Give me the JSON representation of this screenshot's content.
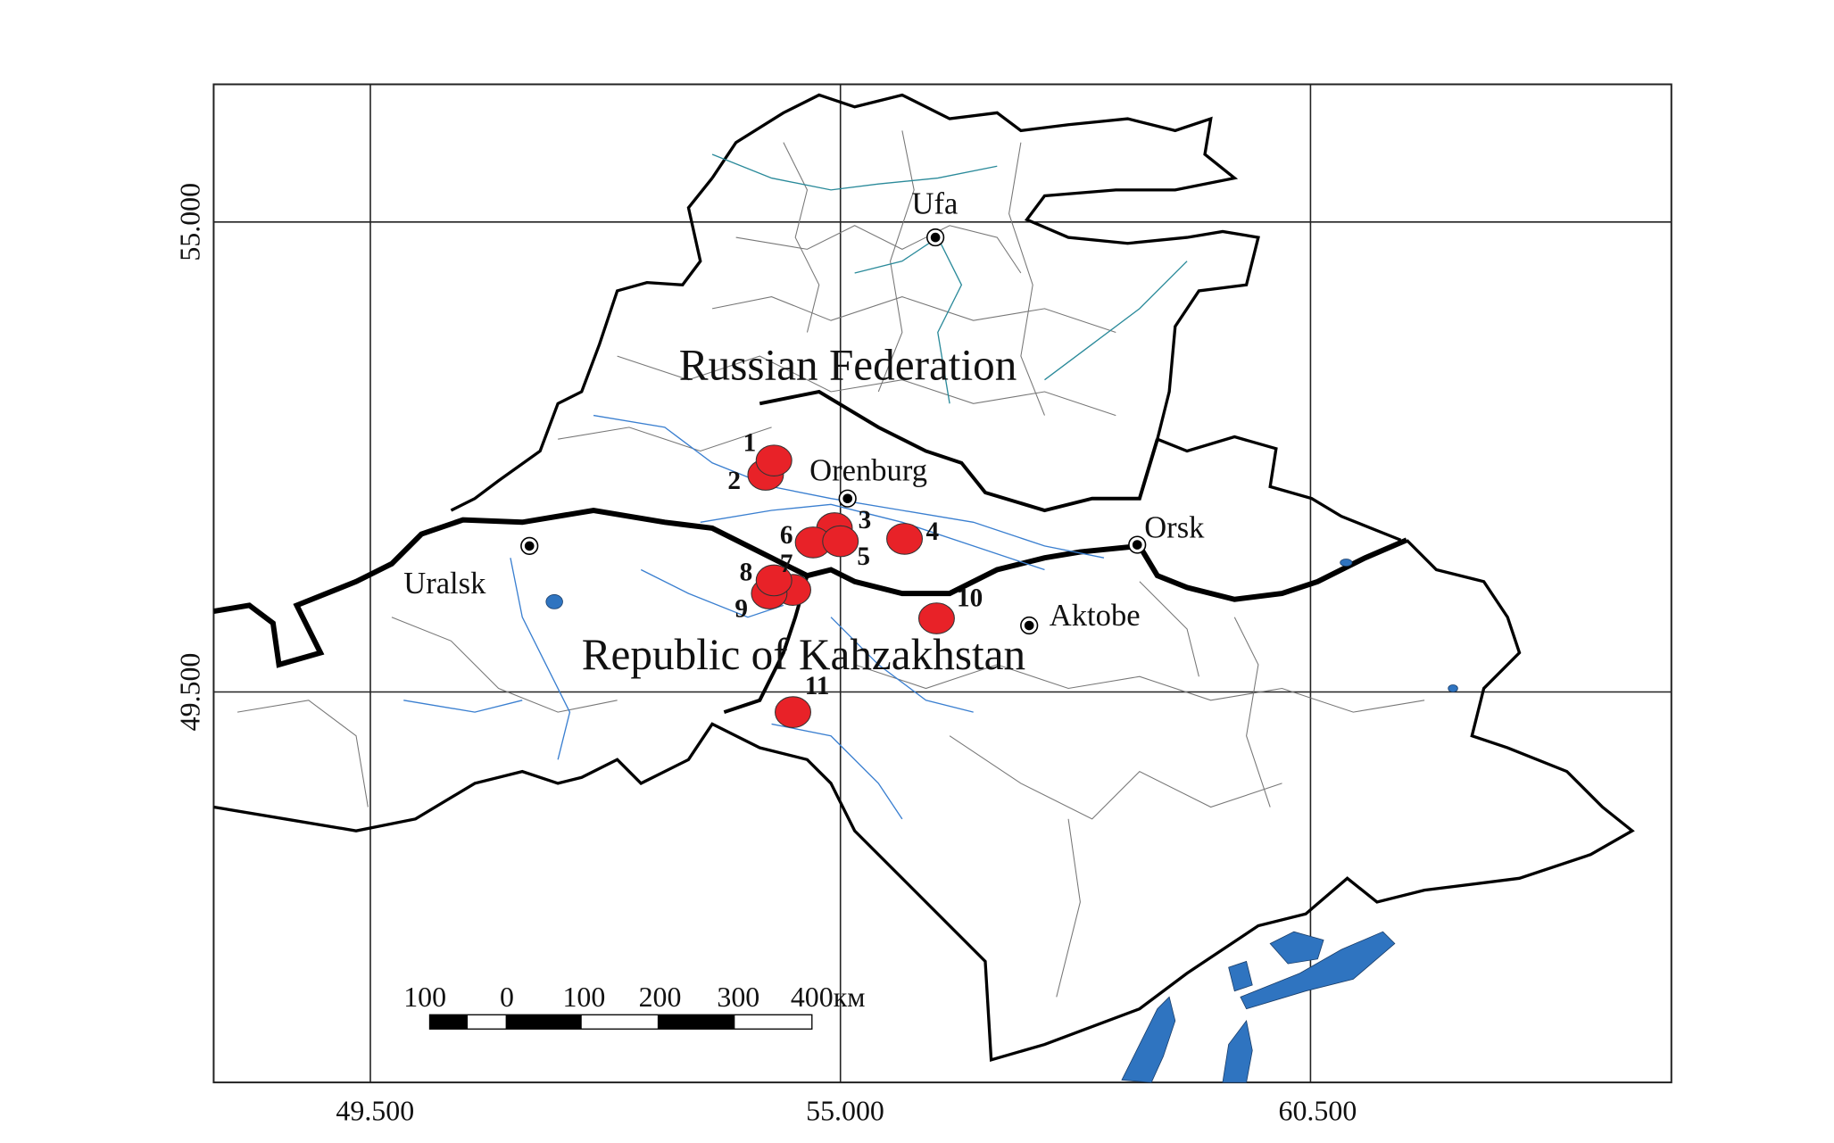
{
  "map": {
    "axis_x_labels": [
      "49.500",
      "55.000",
      "60.500"
    ],
    "axis_y_labels": [
      "55.000",
      "49.500"
    ],
    "regions": [
      "Russian Federation",
      "Republic of Kahzakhstan"
    ],
    "cities": [
      "Ufa",
      "Orenburg",
      "Orsk",
      "Uralsk",
      "Aktobe"
    ],
    "sites": [
      "1",
      "2",
      "3",
      "4",
      "5",
      "6",
      "7",
      "8",
      "9",
      "10",
      "11"
    ],
    "scale_bar": {
      "labels": [
        "100",
        "0",
        "100",
        "200",
        "300",
        "400км"
      ]
    },
    "colors": {
      "site": "#e82228",
      "water": "#2f74c0",
      "river": "#3a7fd0",
      "river_north": "#2a8a9a",
      "border": "#000000"
    }
  }
}
